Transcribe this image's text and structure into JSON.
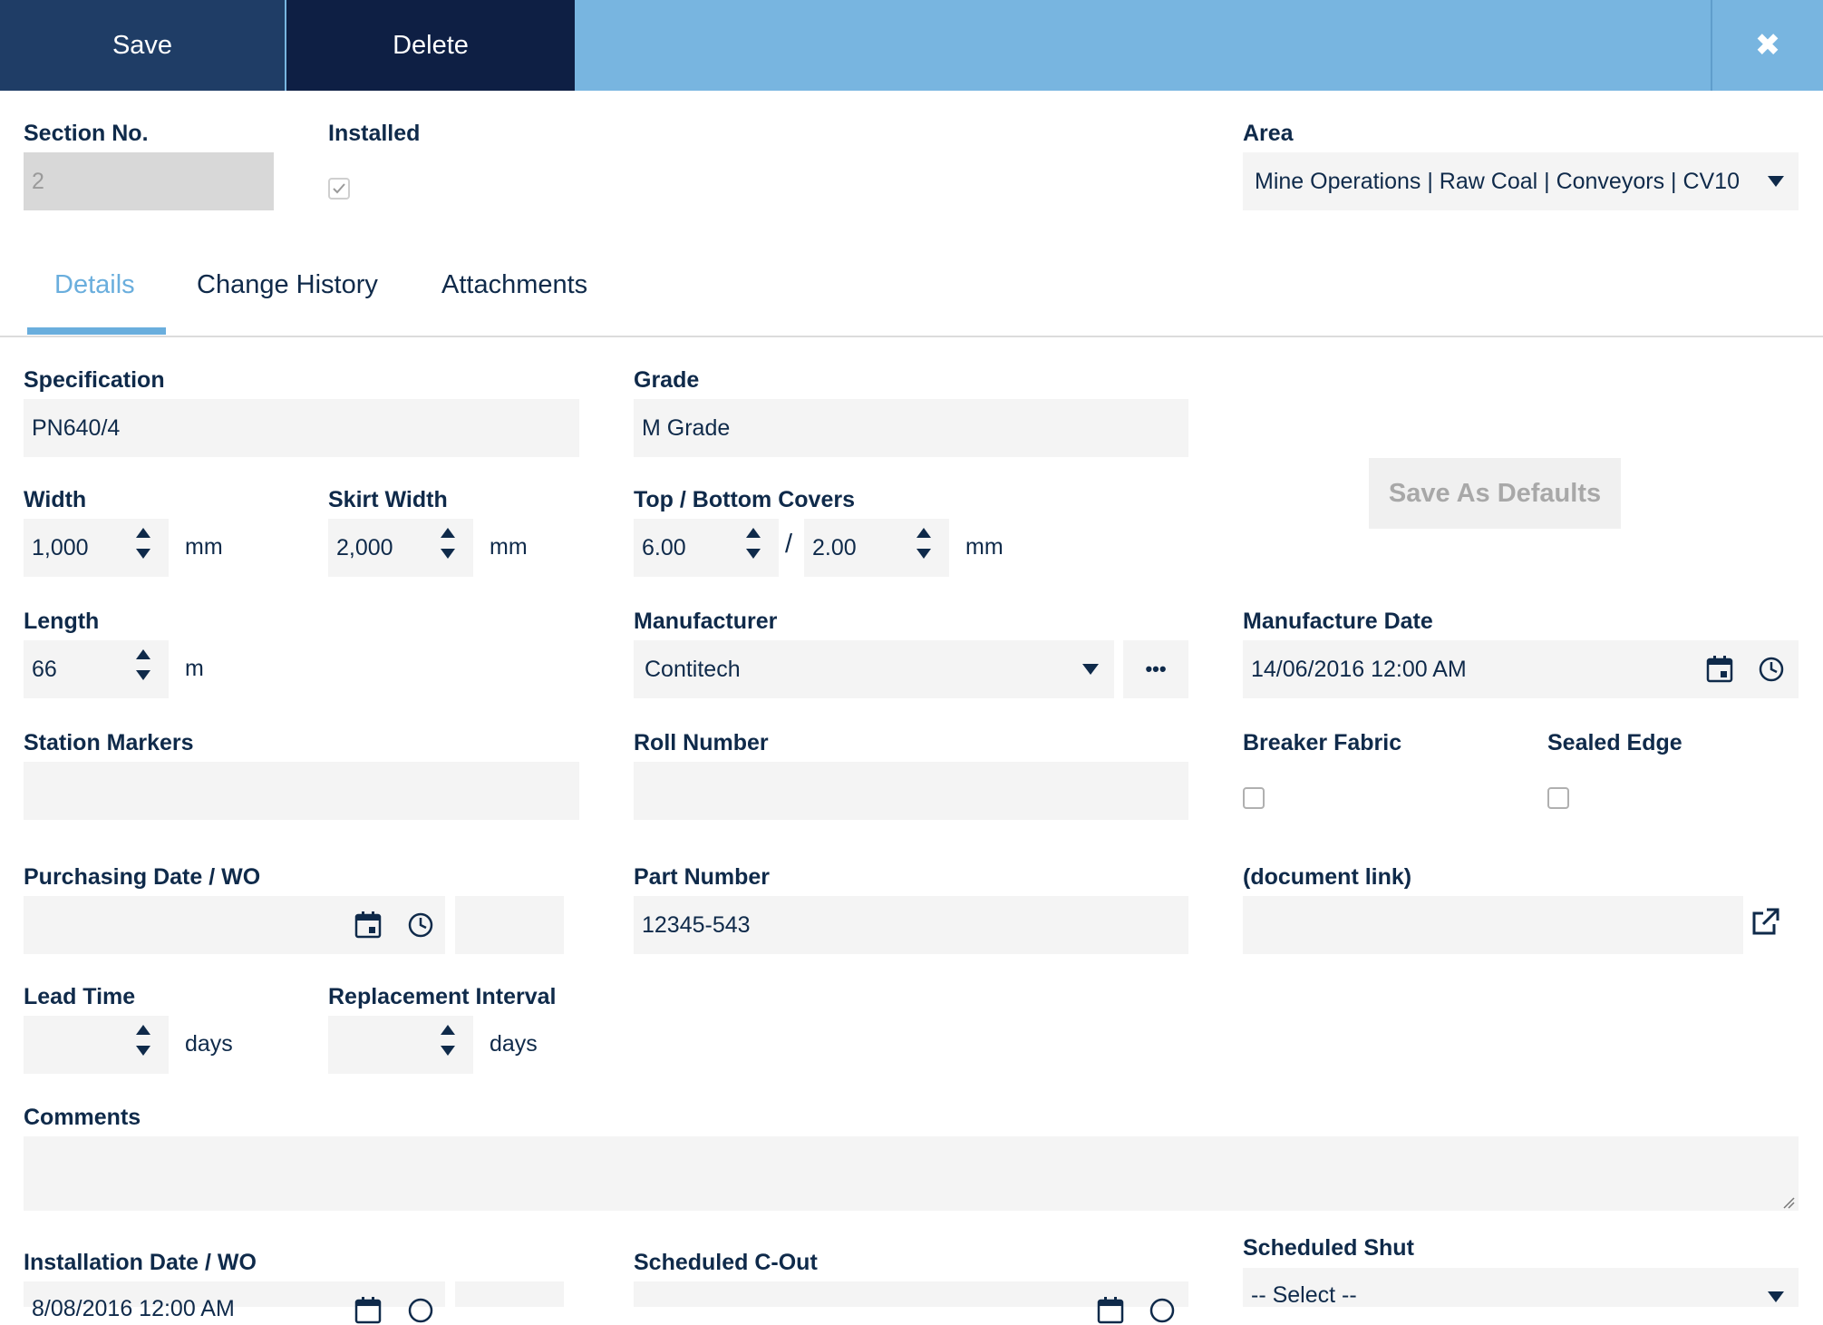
{
  "toolbar": {
    "save_label": "Save",
    "delete_label": "Delete",
    "close_label": "✖"
  },
  "header": {
    "section_no_label": "Section No.",
    "section_no_value": "2",
    "installed_label": "Installed",
    "installed_checked": true,
    "area_label": "Area",
    "area_value": "Mine Operations | Raw Coal | Conveyors | CV10"
  },
  "tabs": [
    {
      "label": "Details",
      "active": true
    },
    {
      "label": "Change History",
      "active": false
    },
    {
      "label": "Attachments",
      "active": false
    }
  ],
  "details": {
    "specification_label": "Specification",
    "specification_value": "PN640/4",
    "grade_label": "Grade",
    "grade_value": "M Grade",
    "save_defaults_label": "Save As Defaults",
    "width_label": "Width",
    "width_value": "1,000",
    "width_unit": "mm",
    "skirt_width_label": "Skirt Width",
    "skirt_width_value": "2,000",
    "skirt_width_unit": "mm",
    "covers_label": "Top / Bottom Covers",
    "top_cover_value": "6.00",
    "covers_separator": "/",
    "bottom_cover_value": "2.00",
    "covers_unit": "mm",
    "length_label": "Length",
    "length_value": "66",
    "length_unit": "m",
    "manufacturer_label": "Manufacturer",
    "manufacturer_value": "Contitech",
    "manufacturer_more": "•••",
    "manufacture_date_label": "Manufacture Date",
    "manufacture_date_value": "14/06/2016 12:00 AM",
    "station_markers_label": "Station Markers",
    "station_markers_value": "",
    "roll_number_label": "Roll Number",
    "roll_number_value": "",
    "breaker_fabric_label": "Breaker Fabric",
    "sealed_edge_label": "Sealed Edge",
    "purchasing_label": "Purchasing Date / WO",
    "purchasing_date_value": "",
    "purchasing_wo_value": "",
    "part_number_label": "Part Number",
    "part_number_value": "12345-543",
    "document_link_label": "(document link)",
    "document_link_value": "",
    "lead_time_label": "Lead Time",
    "lead_time_value": "",
    "lead_time_unit": "days",
    "replacement_label": "Replacement Interval",
    "replacement_value": "",
    "replacement_unit": "days",
    "comments_label": "Comments",
    "comments_value": "",
    "installation_label": "Installation Date / WO",
    "installation_date_value": "8/08/2016 12:00 AM",
    "scheduled_cout_label": "Scheduled C-Out",
    "scheduled_shut_label": "Scheduled Shut",
    "scheduled_shut_value": "-- Select --"
  },
  "colors": {
    "toolbar": "#78b5e0",
    "save": "#1f3d66",
    "delete": "#0e1f44",
    "accent": "#6aaedd",
    "field": "#f4f4f4"
  },
  "icons": [
    "close-icon",
    "calendar-icon",
    "clock-icon",
    "external-link-icon",
    "chevron-down-icon",
    "ellipsis-icon",
    "checkmark-icon"
  ]
}
